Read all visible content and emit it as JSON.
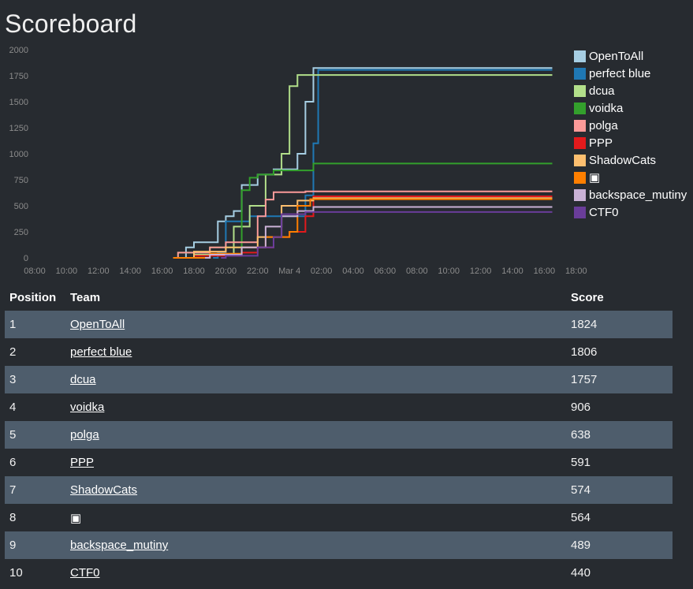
{
  "page": {
    "title": "Scoreboard"
  },
  "table": {
    "headers": {
      "position": "Position",
      "team": "Team",
      "score": "Score"
    },
    "rows": [
      {
        "position": "1",
        "team": "OpenToAll",
        "score": "1824"
      },
      {
        "position": "2",
        "team": "perfect blue",
        "score": "1806"
      },
      {
        "position": "3",
        "team": "dcua",
        "score": "1757"
      },
      {
        "position": "4",
        "team": "voidka",
        "score": "906"
      },
      {
        "position": "5",
        "team": "polga",
        "score": "638"
      },
      {
        "position": "6",
        "team": "PPP",
        "score": "591"
      },
      {
        "position": "7",
        "team": "ShadowCats",
        "score": "574"
      },
      {
        "position": "8",
        "team": "▣",
        "score": "564"
      },
      {
        "position": "9",
        "team": "backspace_mutiny",
        "score": "489"
      },
      {
        "position": "10",
        "team": "CTF0",
        "score": "440"
      }
    ]
  },
  "chart_data": {
    "type": "line",
    "step": true,
    "ylim": [
      0,
      2000
    ],
    "yticks": [
      "0",
      "250",
      "500",
      "750",
      "1000",
      "1250",
      "1500",
      "1750",
      "2000"
    ],
    "xticks": [
      "08:00",
      "10:00",
      "12:00",
      "14:00",
      "16:00",
      "18:00",
      "20:00",
      "22:00",
      "Mar 4",
      "02:00",
      "04:00",
      "06:00",
      "08:00",
      "10:00",
      "12:00",
      "14:00",
      "16:00",
      "18:00"
    ],
    "x_unit": "hours from 08:00 (Mar 3)",
    "legend": "right",
    "series": [
      {
        "name": "OpenToAll",
        "color": "#a6cee3",
        "end": 17,
        "points": [
          [
            9.5,
            100
          ],
          [
            10,
            150
          ],
          [
            11.5,
            350
          ],
          [
            12,
            400
          ],
          [
            12.5,
            450
          ],
          [
            13,
            700
          ],
          [
            14,
            800
          ],
          [
            15,
            850
          ],
          [
            16.5,
            1000
          ],
          [
            17,
            1500
          ],
          [
            17.5,
            1824
          ]
        ]
      },
      {
        "name": "perfect blue",
        "color": "#1f78b4",
        "end": 17,
        "points": [
          [
            11.5,
            50
          ],
          [
            12,
            350
          ],
          [
            13.5,
            400
          ],
          [
            15,
            400
          ],
          [
            17,
            600
          ],
          [
            17.5,
            1100
          ],
          [
            17.8,
            1806
          ]
        ]
      },
      {
        "name": "dcua",
        "color": "#b2df8a",
        "end": 17,
        "points": [
          [
            10,
            30
          ],
          [
            12.5,
            300
          ],
          [
            13.5,
            500
          ],
          [
            14.5,
            800
          ],
          [
            15.5,
            1000
          ],
          [
            16,
            1650
          ],
          [
            16.5,
            1757
          ]
        ]
      },
      {
        "name": "voidka",
        "color": "#33a02c",
        "end": 17,
        "points": [
          [
            9,
            50
          ],
          [
            11,
            100
          ],
          [
            13,
            650
          ],
          [
            13.5,
            770
          ],
          [
            14,
            800
          ],
          [
            15,
            840
          ],
          [
            17.5,
            906
          ]
        ]
      },
      {
        "name": "polga",
        "color": "#fb9a99",
        "end": 17,
        "points": [
          [
            9,
            50
          ],
          [
            11,
            100
          ],
          [
            12,
            150
          ],
          [
            14,
            400
          ],
          [
            14.5,
            560
          ],
          [
            15,
            630
          ],
          [
            17,
            638
          ]
        ]
      },
      {
        "name": "PPP",
        "color": "#e31a1c",
        "end": 17,
        "points": [
          [
            10,
            20
          ],
          [
            13,
            50
          ],
          [
            14,
            100
          ],
          [
            15,
            200
          ],
          [
            16,
            250
          ],
          [
            17,
            400
          ],
          [
            17.5,
            591
          ]
        ]
      },
      {
        "name": "ShadowCats",
        "color": "#fdbf6f",
        "end": 17,
        "points": [
          [
            10,
            60
          ],
          [
            12,
            100
          ],
          [
            14,
            200
          ],
          [
            15.5,
            500
          ],
          [
            16.5,
            550
          ],
          [
            17.5,
            574
          ]
        ]
      },
      {
        "name": "▣",
        "color": "#ff7f00",
        "end": 17,
        "points": [
          [
            9,
            0
          ],
          [
            11,
            40
          ],
          [
            13,
            100
          ],
          [
            14.5,
            200
          ],
          [
            16,
            250
          ],
          [
            16.5,
            500
          ],
          [
            17.3,
            564
          ]
        ]
      },
      {
        "name": "backspace_mutiny",
        "color": "#cab2d6",
        "end": 17,
        "points": [
          [
            11,
            30
          ],
          [
            13,
            100
          ],
          [
            14.5,
            300
          ],
          [
            15.5,
            400
          ],
          [
            16.5,
            450
          ],
          [
            17.5,
            489
          ]
        ]
      },
      {
        "name": "CTF0",
        "color": "#6a3d9a",
        "end": 17,
        "points": [
          [
            12,
            20
          ],
          [
            14,
            100
          ],
          [
            15,
            200
          ],
          [
            15.5,
            420
          ],
          [
            17,
            440
          ]
        ]
      }
    ]
  }
}
